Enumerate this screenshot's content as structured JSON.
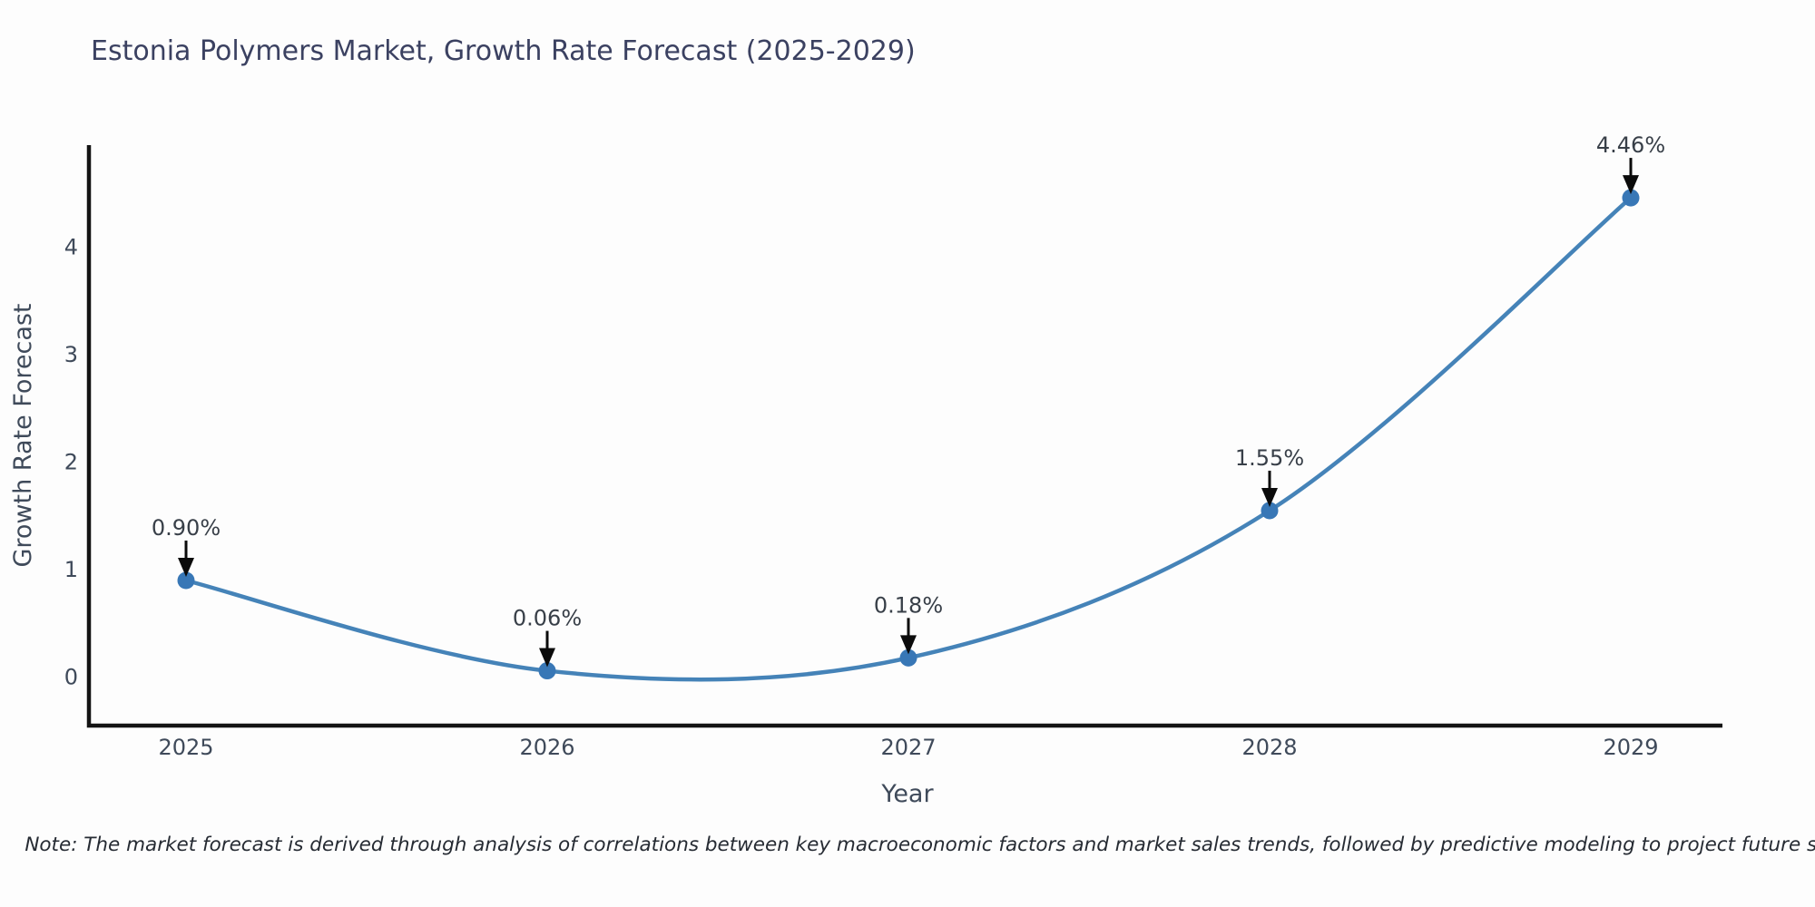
{
  "title": "Estonia Polymers Market, Growth Rate Forecast (2025-2029)",
  "note": "Note: The market forecast is derived through analysis of correlations between key macroeconomic factors and market sales trends, followed by predictive modeling to project future sales.",
  "chart_data": {
    "type": "line",
    "title": "Estonia Polymers Market, Growth Rate Forecast (2025-2029)",
    "xlabel": "Year",
    "ylabel": "Growth Rate Forecast",
    "x": [
      2025,
      2026,
      2027,
      2028,
      2029
    ],
    "values": [
      0.9,
      0.06,
      0.18,
      1.55,
      4.46
    ],
    "point_labels": [
      "0.90%",
      "0.06%",
      "0.18%",
      "1.55%",
      "4.46%"
    ],
    "xtick_labels": [
      "2025",
      "2026",
      "2027",
      "2028",
      "2029"
    ],
    "yticks": [
      0,
      1,
      2,
      3,
      4
    ],
    "ylim": [
      -0.45,
      4.95
    ],
    "line_shape": "spline",
    "grid": false,
    "legend_position": "none",
    "annotation_style": "down-arrow",
    "colors": {
      "line": "#4583b8",
      "marker": "#3877b6",
      "axis": "#141414",
      "arrow": "#0b0b0b",
      "title_text": "#3b4161",
      "tick_text": "#3f4a5a",
      "annotation_text": "#383f48",
      "note_text": "#262b33",
      "background": "#fdfdfd"
    }
  }
}
